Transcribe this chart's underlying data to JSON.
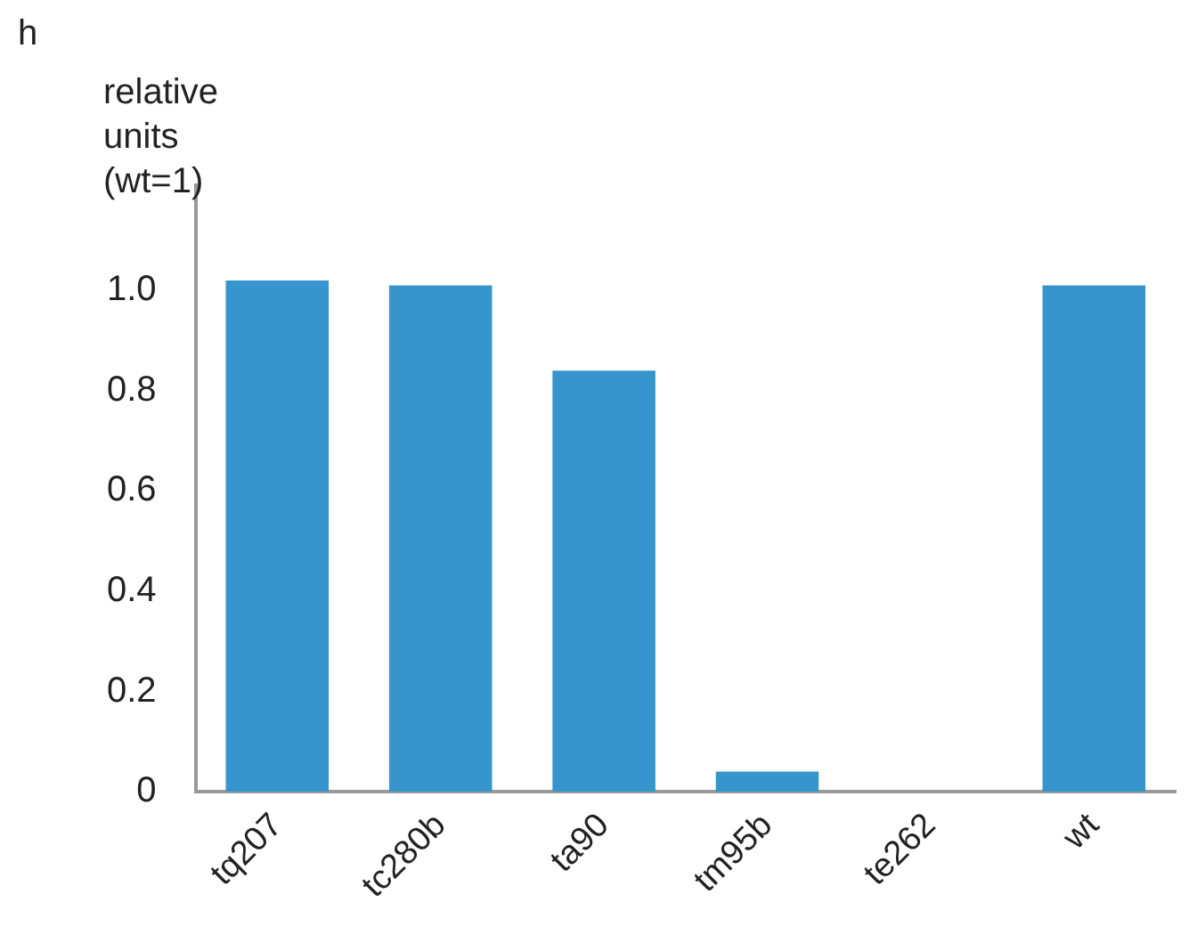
{
  "chart_data": {
    "type": "bar",
    "title": "h",
    "ylabel": "relative units (wt=1)",
    "categories": [
      "tq207",
      "tc280b",
      "ta90",
      "tm95b",
      "te262",
      "wt"
    ],
    "values": [
      1.02,
      1.01,
      0.84,
      0.04,
      0,
      1.01
    ],
    "color": "#3595cc",
    "ylim": [
      0,
      1.21
    ],
    "yticks": [
      0,
      0.2,
      0.4,
      0.6,
      0.8,
      {
        "value": 1,
        "label": "1.0"
      }
    ],
    "grid": false,
    "legend": false
  }
}
